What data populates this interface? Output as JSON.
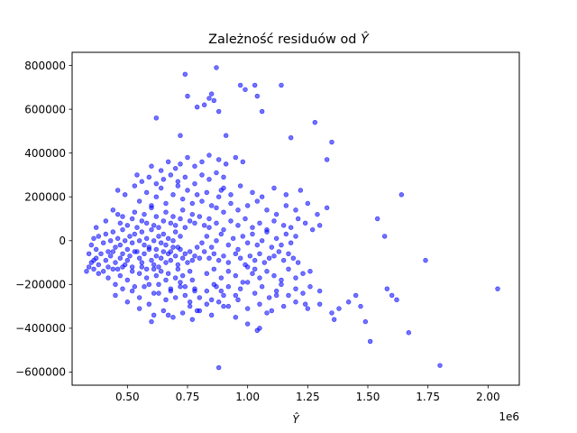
{
  "chart_data": {
    "type": "scatter",
    "title": "Zależność residuów od",
    "title_symbol": "Ŷ",
    "xlabel": "Ŷ",
    "ylabel": "",
    "x_offset_label": "1e6",
    "x_scale": 1000000,
    "xlim": [
      0.27,
      2.13
    ],
    "ylim": [
      -660000,
      860000
    ],
    "xticks": [
      0.5,
      0.75,
      1.0,
      1.25,
      1.5,
      1.75,
      2.0
    ],
    "xtick_labels": [
      "0.50",
      "0.75",
      "1.00",
      "1.25",
      "1.50",
      "1.75",
      "2.00"
    ],
    "yticks": [
      -600000,
      -400000,
      -200000,
      0,
      200000,
      400000,
      600000,
      800000
    ],
    "ytick_labels": [
      "−600000",
      "−400000",
      "−200000",
      "0",
      "200000",
      "400000",
      "600000",
      "800000"
    ],
    "grid": false,
    "legend": "none",
    "marker_color": "#0000ff",
    "marker_alpha": 0.55,
    "series": [
      {
        "x": [
          0.33,
          0.34,
          0.35,
          0.36,
          0.37,
          0.38,
          0.39,
          0.41,
          0.42,
          0.43,
          0.44,
          0.45,
          0.46,
          0.47,
          0.48,
          0.49,
          0.5,
          0.51,
          0.52,
          0.53,
          0.55,
          0.56,
          0.57,
          0.58,
          0.59,
          0.6,
          0.61,
          0.62,
          0.63,
          0.64,
          0.65,
          0.66,
          0.67,
          0.68,
          0.69,
          0.7,
          0.71,
          0.72,
          0.73,
          0.74,
          0.75,
          0.76,
          0.77,
          0.78,
          0.79,
          0.8,
          0.35,
          0.36,
          0.37,
          0.38,
          0.4,
          0.41,
          0.42,
          0.43,
          0.44,
          0.45,
          0.46,
          0.47,
          0.48,
          0.49,
          0.5,
          0.51,
          0.52,
          0.53,
          0.54,
          0.55,
          0.56,
          0.57,
          0.58,
          0.59,
          0.6,
          0.61,
          0.62,
          0.63,
          0.64,
          0.65,
          0.66,
          0.67,
          0.68,
          0.69,
          0.7,
          0.71,
          0.72,
          0.34,
          0.36,
          0.38,
          0.4,
          0.42,
          0.44,
          0.45,
          0.47,
          0.48,
          0.5,
          0.52,
          0.53,
          0.55,
          0.56,
          0.58,
          0.59,
          0.61,
          0.62,
          0.63,
          0.64,
          0.66,
          0.67,
          0.68,
          0.7,
          0.71,
          0.72,
          0.73,
          0.74,
          0.76,
          0.77,
          0.78,
          0.37,
          0.41,
          0.44,
          0.46,
          0.47,
          0.48,
          0.5,
          0.52,
          0.53,
          0.54,
          0.56,
          0.57,
          0.58,
          0.6,
          0.61,
          0.62,
          0.63,
          0.65,
          0.66,
          0.68,
          0.69,
          0.7,
          0.72,
          0.73,
          0.74,
          0.76,
          0.77,
          0.78,
          0.8,
          0.82,
          0.84,
          0.55,
          0.58,
          0.6,
          0.62,
          0.64,
          0.66,
          0.69,
          0.71,
          0.73,
          0.75,
          0.77,
          0.79,
          0.81,
          0.83,
          0.85,
          0.88,
          0.9,
          0.45,
          0.48,
          0.5,
          0.52,
          0.55,
          0.57,
          0.59,
          0.61,
          0.63,
          0.66,
          0.68,
          0.7,
          0.72,
          0.74,
          0.76,
          0.78,
          0.8,
          0.83,
          0.85,
          0.87,
          0.9,
          0.46,
          0.49,
          0.53,
          0.56,
          0.59,
          0.62,
          0.65,
          0.68,
          0.71,
          0.74,
          0.78,
          0.81,
          0.84,
          0.87,
          0.9,
          0.54,
          0.6,
          0.64,
          0.67,
          0.7,
          0.72,
          0.75,
          0.78,
          0.81,
          0.84,
          0.88,
          0.91,
          0.95,
          0.98,
          0.55,
          0.61,
          0.65,
          0.69,
          0.73,
          0.77,
          0.8,
          0.85,
          0.9,
          0.62,
          0.72,
          0.74,
          0.75,
          0.79,
          0.82,
          0.84,
          0.85,
          0.86,
          0.87,
          0.88,
          0.91,
          0.97,
          0.99,
          1.03,
          1.04,
          1.06,
          1.14,
          0.6,
          0.67,
          0.76,
          0.79,
          0.83,
          0.88,
          0.95,
          1.0,
          1.04,
          1.08,
          0.81,
          0.83,
          0.85,
          0.87,
          0.89,
          0.92,
          0.94,
          0.96,
          0.98,
          1.0,
          1.02,
          1.04,
          1.06,
          1.08,
          1.1,
          1.12,
          1.14,
          1.16,
          1.18,
          1.2,
          0.82,
          0.84,
          0.86,
          0.88,
          0.9,
          0.92,
          0.95,
          0.97,
          0.99,
          1.01,
          1.03,
          1.05,
          1.07,
          1.09,
          1.11,
          1.13,
          1.15,
          1.17,
          1.19,
          1.21,
          0.83,
          0.86,
          0.89,
          0.92,
          0.95,
          0.98,
          1.0,
          1.02,
          1.03,
          1.05,
          1.08,
          1.11,
          1.14,
          1.17,
          1.2,
          1.23,
          1.26,
          0.84,
          0.87,
          0.9,
          0.93,
          0.96,
          0.99,
          1.02,
          1.05,
          1.08,
          1.11,
          1.15,
          1.18,
          1.21,
          1.24,
          1.27,
          1.3,
          0.86,
          0.89,
          0.92,
          0.95,
          0.97,
          1.0,
          1.03,
          1.06,
          1.09,
          1.12,
          1.14,
          1.17,
          1.2,
          1.23,
          1.26,
          0.87,
          0.9,
          0.93,
          0.96,
          1.0,
          1.04,
          1.08,
          1.12,
          1.16,
          1.2,
          1.25,
          1.29,
          1.33,
          0.88,
          0.92,
          0.96,
          1.0,
          1.05,
          1.1,
          1.15,
          1.2,
          1.25,
          1.3,
          1.35,
          0.89,
          0.93,
          0.97,
          1.02,
          1.06,
          1.11,
          1.16,
          1.22,
          1.05,
          1.12,
          1.18,
          1.24,
          1.28,
          1.3,
          1.33,
          1.35,
          1.36,
          1.38,
          1.42,
          1.45,
          1.47,
          1.49,
          1.51,
          1.54,
          1.57,
          1.58,
          1.6,
          1.62,
          1.64,
          1.67,
          1.74,
          1.8,
          2.04
        ],
        "y": [
          -140000,
          -120000,
          -100000,
          -130000,
          -80000,
          -110000,
          -60000,
          -90000,
          -120000,
          -70000,
          -50000,
          -100000,
          -130000,
          -80000,
          -60000,
          -110000,
          -90000,
          -70000,
          -120000,
          -50000,
          -80000,
          -100000,
          -60000,
          -130000,
          -40000,
          -90000,
          -110000,
          -70000,
          -120000,
          -80000,
          -50000,
          -100000,
          -60000,
          -90000,
          -30000,
          -70000,
          -110000,
          -40000,
          -80000,
          -60000,
          -100000,
          -50000,
          -90000,
          -70000,
          -30000,
          -80000,
          -20000,
          10000,
          -40000,
          20000,
          -10000,
          30000,
          -50000,
          0,
          40000,
          -30000,
          10000,
          -20000,
          50000,
          0,
          -40000,
          20000,
          -10000,
          30000,
          -50000,
          0,
          40000,
          -20000,
          10000,
          -30000,
          50000,
          0,
          -40000,
          20000,
          -10000,
          30000,
          -20000,
          10000,
          -50000,
          0,
          40000,
          -30000,
          20000,
          -60000,
          -90000,
          -150000,
          -140000,
          -170000,
          -130000,
          -200000,
          -160000,
          -120000,
          -180000,
          -140000,
          -210000,
          -150000,
          -120000,
          -170000,
          -200000,
          -130000,
          -160000,
          -240000,
          -140000,
          -180000,
          -150000,
          -220000,
          -170000,
          -130000,
          -190000,
          -160000,
          -210000,
          -140000,
          -180000,
          -230000,
          60000,
          90000,
          140000,
          120000,
          80000,
          110000,
          70000,
          100000,
          130000,
          60000,
          90000,
          120000,
          80000,
          150000,
          70000,
          110000,
          60000,
          90000,
          130000,
          80000,
          110000,
          70000,
          100000,
          140000,
          60000,
          90000,
          120000,
          80000,
          110000,
          70000,
          100000,
          180000,
          220000,
          160000,
          200000,
          240000,
          170000,
          210000,
          250000,
          190000,
          230000,
          170000,
          210000,
          180000,
          220000,
          160000,
          200000,
          240000,
          -250000,
          -220000,
          -280000,
          -230000,
          -260000,
          -210000,
          -290000,
          -240000,
          -200000,
          -270000,
          -230000,
          -260000,
          -210000,
          -250000,
          -280000,
          -220000,
          -260000,
          -230000,
          -270000,
          -210000,
          -250000,
          230000,
          210000,
          250000,
          270000,
          290000,
          260000,
          280000,
          300000,
          270000,
          290000,
          260000,
          300000,
          280000,
          310000,
          290000,
          300000,
          340000,
          320000,
          360000,
          330000,
          350000,
          380000,
          340000,
          360000,
          390000,
          370000,
          350000,
          380000,
          360000,
          -310000,
          -340000,
          -320000,
          -350000,
          -330000,
          -360000,
          -320000,
          -340000,
          -300000,
          560000,
          480000,
          760000,
          660000,
          610000,
          620000,
          650000,
          670000,
          640000,
          790000,
          590000,
          480000,
          710000,
          690000,
          710000,
          660000,
          590000,
          710000,
          -370000,
          -340000,
          -300000,
          -320000,
          -290000,
          -580000,
          -350000,
          -380000,
          -410000,
          -330000,
          -10000,
          20000,
          -30000,
          0,
          30000,
          -20000,
          10000,
          -40000,
          20000,
          -10000,
          30000,
          -20000,
          0,
          40000,
          -30000,
          10000,
          -20000,
          30000,
          -10000,
          20000,
          -50000,
          -80000,
          -60000,
          -90000,
          -70000,
          -100000,
          -60000,
          -80000,
          -110000,
          -70000,
          -90000,
          -60000,
          -100000,
          -80000,
          -70000,
          -50000,
          -90000,
          -60000,
          -80000,
          -100000,
          -150000,
          -130000,
          -170000,
          -140000,
          -160000,
          -190000,
          -120000,
          -150000,
          -130000,
          -170000,
          -140000,
          -160000,
          -180000,
          -130000,
          -170000,
          -150000,
          -140000,
          60000,
          80000,
          50000,
          90000,
          70000,
          100000,
          60000,
          80000,
          50000,
          90000,
          70000,
          60000,
          100000,
          80000,
          50000,
          70000,
          -200000,
          -230000,
          -210000,
          -250000,
          -220000,
          -190000,
          -240000,
          -210000,
          -260000,
          -230000,
          -200000,
          -250000,
          -220000,
          -240000,
          -210000,
          150000,
          130000,
          170000,
          140000,
          160000,
          180000,
          140000,
          120000,
          160000,
          140000,
          170000,
          120000,
          150000,
          -280000,
          -300000,
          -270000,
          -310000,
          -290000,
          -320000,
          -300000,
          -280000,
          -310000,
          -290000,
          -330000,
          230000,
          210000,
          250000,
          220000,
          200000,
          240000,
          210000,
          230000,
          -400000,
          -250000,
          470000,
          -290000,
          540000,
          -230000,
          370000,
          450000,
          -360000,
          -310000,
          -280000,
          -250000,
          -300000,
          -370000,
          -460000,
          100000,
          20000,
          -220000,
          -250000,
          -270000,
          210000,
          -420000,
          -90000,
          -570000,
          -220000
        ]
      }
    ]
  }
}
